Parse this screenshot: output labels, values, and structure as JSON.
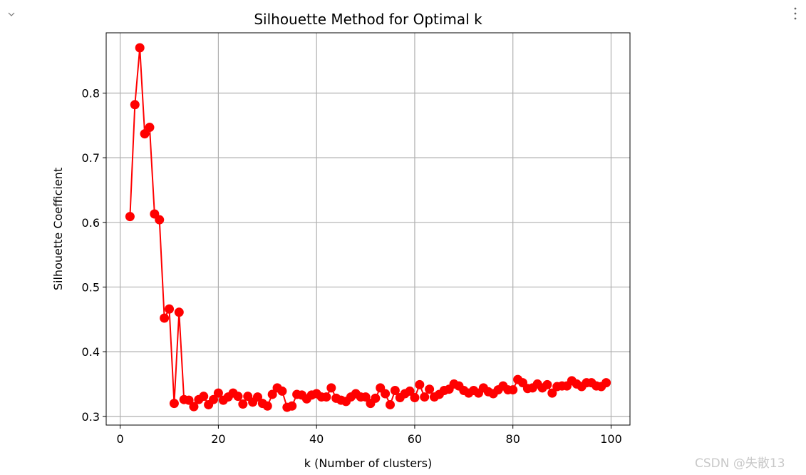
{
  "toolbar": {
    "collapse_icon": "chevron-down-icon",
    "menu_icon": "more-vertical-icon"
  },
  "watermark": "CSDN @失散13",
  "chart_data": {
    "type": "line",
    "title": "Silhouette Method for Optimal k",
    "xlabel": "k (Number of clusters)",
    "ylabel": "Silhouette Coefficient",
    "xlim": [
      -2.85,
      103.85
    ],
    "ylim": [
      0.2865,
      0.8932
    ],
    "xticks": [
      0,
      20,
      40,
      60,
      80,
      100
    ],
    "yticks": [
      0.3,
      0.4,
      0.5,
      0.6,
      0.7,
      0.8
    ],
    "xtick_labels": [
      "0",
      "20",
      "40",
      "60",
      "80",
      "100"
    ],
    "ytick_labels": [
      "0.3",
      "0.4",
      "0.5",
      "0.6",
      "0.7",
      "0.8"
    ],
    "grid": true,
    "color": "#ff0000",
    "marker": "circle",
    "x": [
      2,
      3,
      4,
      5,
      6,
      7,
      8,
      9,
      10,
      11,
      12,
      13,
      14,
      15,
      16,
      17,
      18,
      19,
      20,
      21,
      22,
      23,
      24,
      25,
      26,
      27,
      28,
      29,
      30,
      31,
      32,
      33,
      34,
      35,
      36,
      37,
      38,
      39,
      40,
      41,
      42,
      43,
      44,
      45,
      46,
      47,
      48,
      49,
      50,
      51,
      52,
      53,
      54,
      55,
      56,
      57,
      58,
      59,
      60,
      61,
      62,
      63,
      64,
      65,
      66,
      67,
      68,
      69,
      70,
      71,
      72,
      73,
      74,
      75,
      76,
      77,
      78,
      79,
      80,
      81,
      82,
      83,
      84,
      85,
      86,
      87,
      88,
      89,
      90,
      91,
      92,
      93,
      94,
      95,
      96,
      97,
      98,
      99
    ],
    "y": [
      0.609,
      0.782,
      0.87,
      0.737,
      0.747,
      0.613,
      0.604,
      0.452,
      0.466,
      0.32,
      0.461,
      0.326,
      0.325,
      0.315,
      0.326,
      0.331,
      0.318,
      0.326,
      0.336,
      0.325,
      0.33,
      0.336,
      0.331,
      0.319,
      0.331,
      0.322,
      0.33,
      0.32,
      0.316,
      0.334,
      0.344,
      0.339,
      0.314,
      0.316,
      0.334,
      0.333,
      0.327,
      0.333,
      0.335,
      0.33,
      0.33,
      0.344,
      0.328,
      0.325,
      0.323,
      0.33,
      0.335,
      0.33,
      0.33,
      0.32,
      0.328,
      0.344,
      0.335,
      0.318,
      0.34,
      0.329,
      0.335,
      0.339,
      0.329,
      0.349,
      0.33,
      0.342,
      0.33,
      0.334,
      0.34,
      0.342,
      0.35,
      0.347,
      0.34,
      0.336,
      0.34,
      0.336,
      0.344,
      0.338,
      0.335,
      0.341,
      0.347,
      0.341,
      0.341,
      0.357,
      0.352,
      0.343,
      0.344,
      0.35,
      0.344,
      0.349,
      0.336,
      0.346,
      0.347,
      0.347,
      0.355,
      0.35,
      0.346,
      0.352,
      0.352,
      0.347,
      0.346,
      0.352
    ]
  }
}
